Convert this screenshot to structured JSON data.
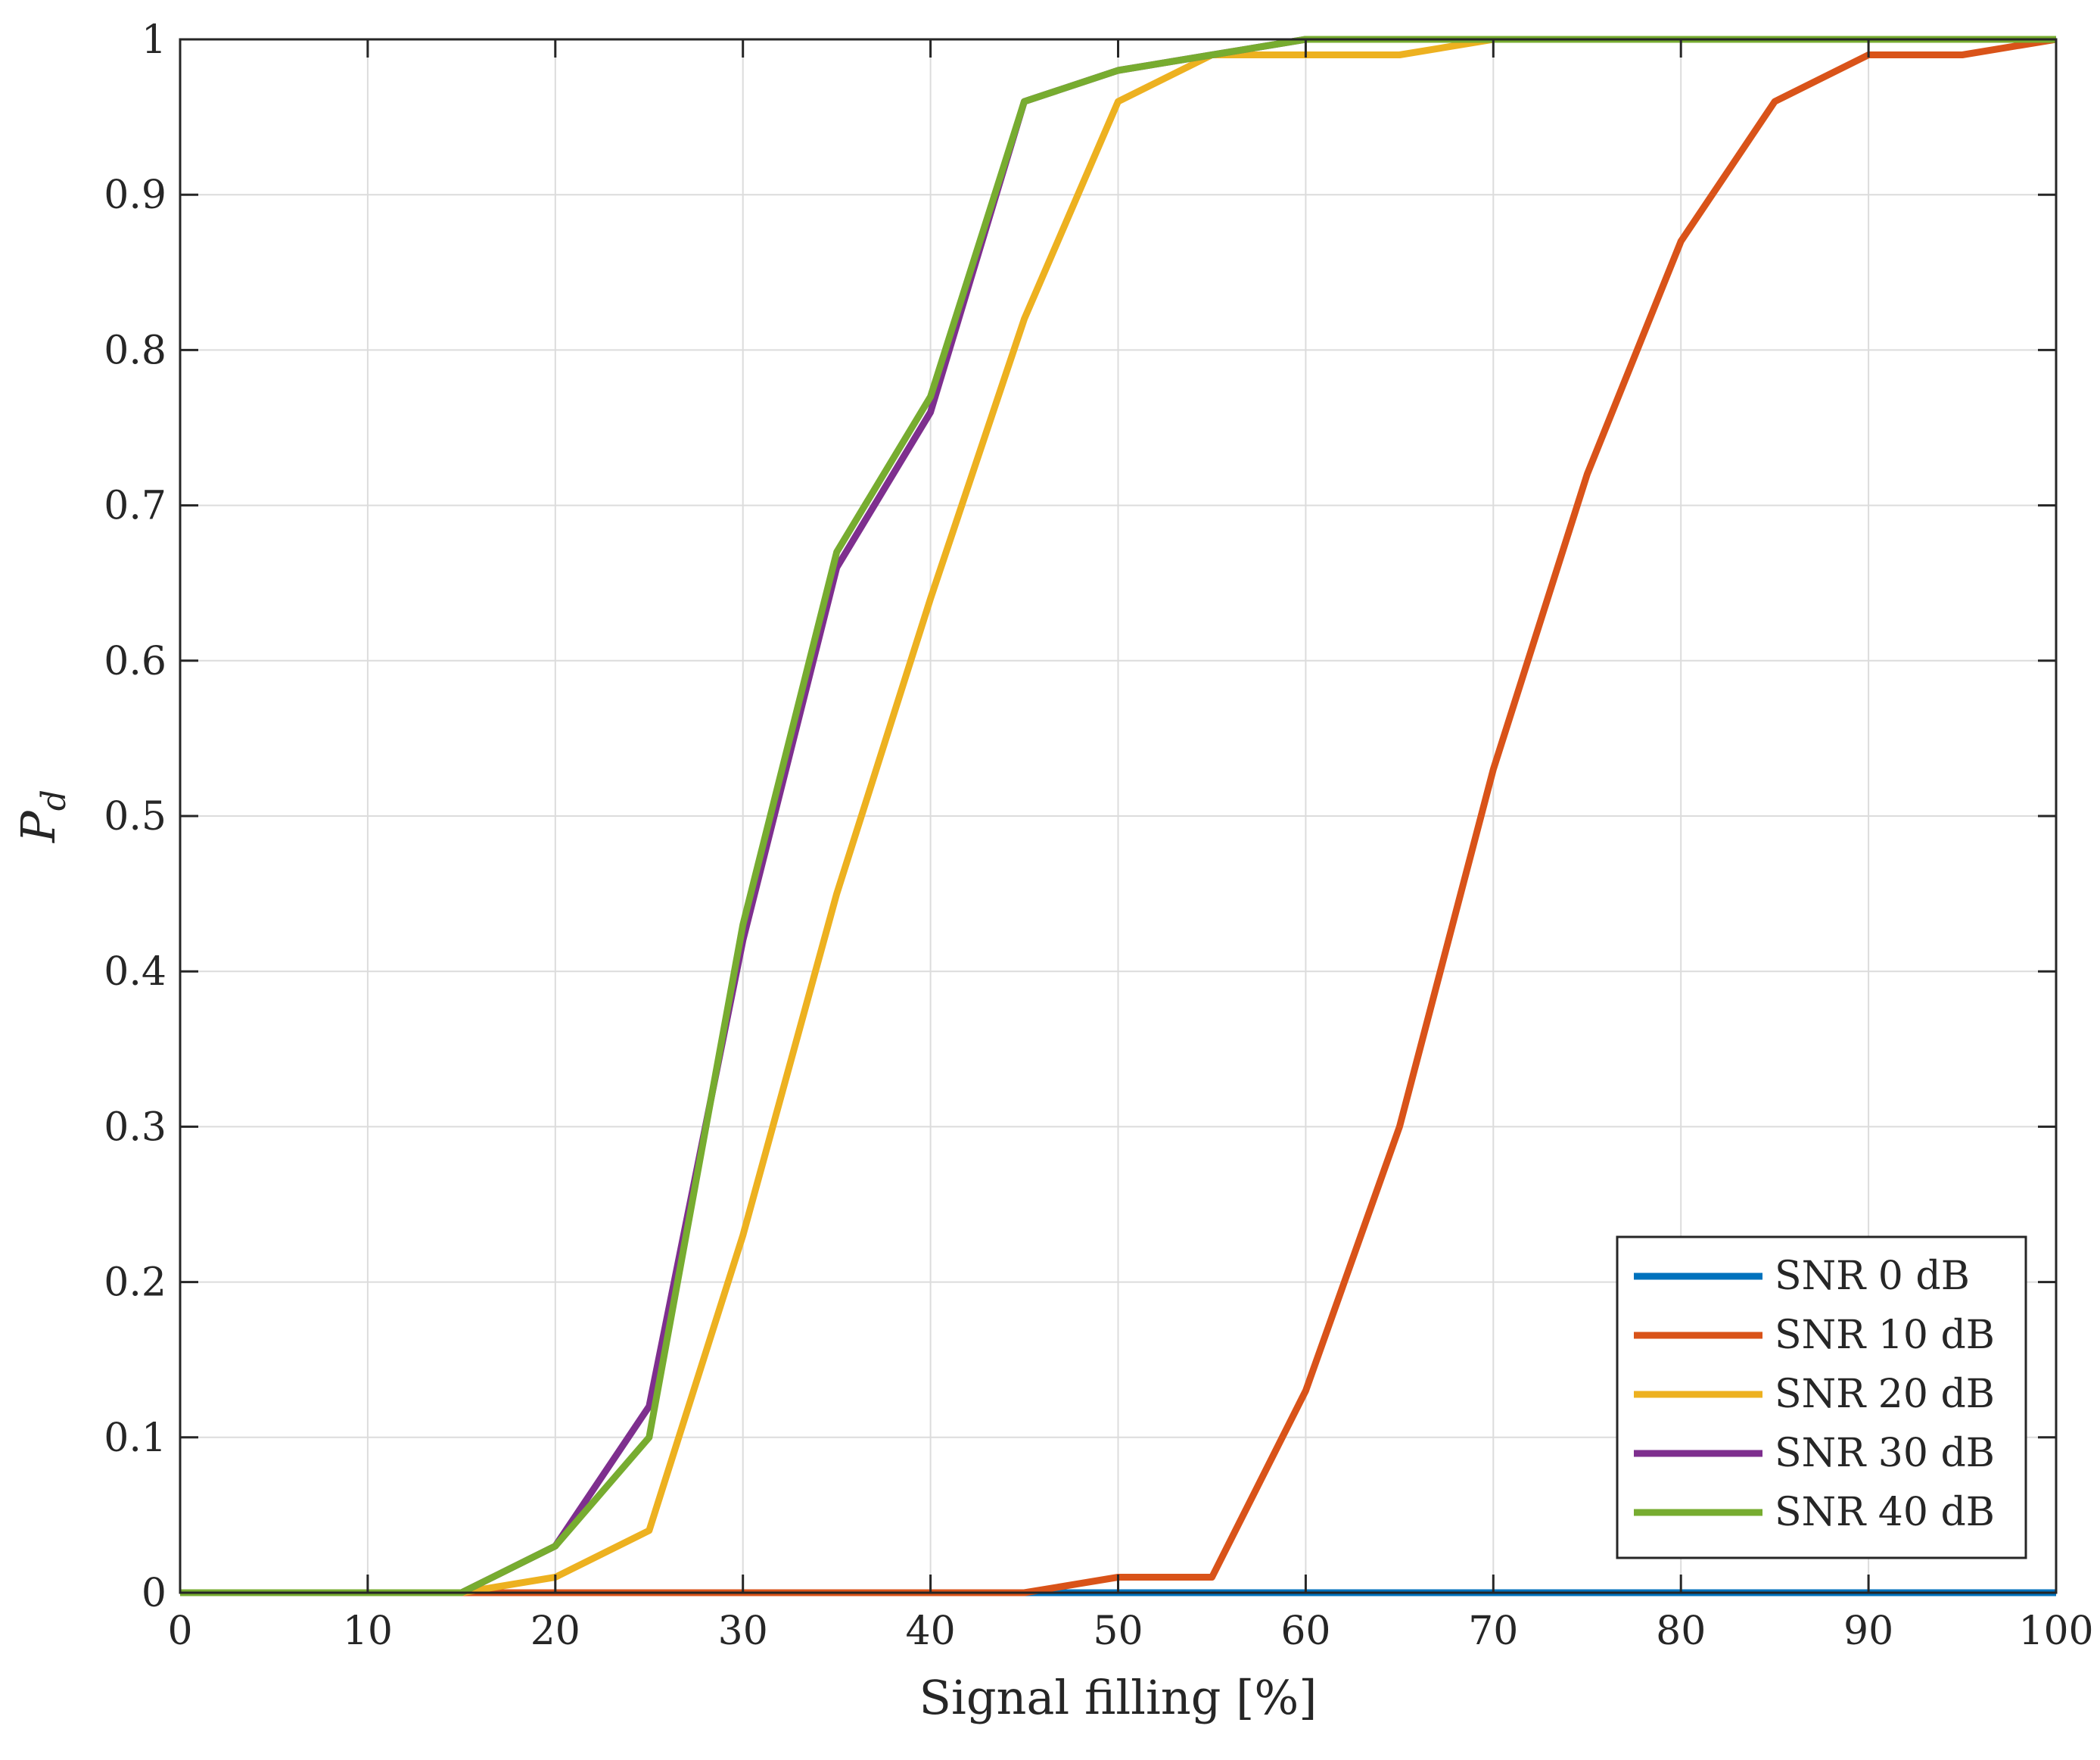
{
  "chart_data": {
    "type": "line",
    "title": "",
    "xlabel": "Signal filling [%]",
    "ylabel_main": "P",
    "ylabel_sub": "d",
    "xlim": [
      0,
      100
    ],
    "ylim": [
      0,
      1
    ],
    "xticks": [
      0,
      10,
      20,
      30,
      40,
      50,
      60,
      70,
      80,
      90,
      100
    ],
    "xtick_labels": [
      "0",
      "10",
      "20",
      "30",
      "40",
      "50",
      "60",
      "70",
      "80",
      "90",
      "100"
    ],
    "yticks": [
      0,
      0.1,
      0.2,
      0.3,
      0.4,
      0.5,
      0.6,
      0.7,
      0.8,
      0.9,
      1
    ],
    "ytick_labels": [
      "0",
      "0.1",
      "0.2",
      "0.3",
      "0.4",
      "0.5",
      "0.6",
      "0.7",
      "0.8",
      "0.9",
      "1"
    ],
    "grid": true,
    "legend_position": "bottom-right",
    "x": [
      0,
      5,
      10,
      15,
      20,
      25,
      30,
      35,
      40,
      45,
      50,
      55,
      60,
      65,
      70,
      75,
      80,
      85,
      90,
      95,
      100
    ],
    "series": [
      {
        "name": "SNR 0 dB",
        "color": "#0072BD",
        "values": [
          0,
          0,
          0,
          0,
          0,
          0,
          0,
          0,
          0,
          0,
          0,
          0,
          0,
          0,
          0,
          0,
          0,
          0,
          0,
          0,
          0
        ]
      },
      {
        "name": "SNR 10 dB",
        "color": "#D95319",
        "values": [
          0,
          0,
          0,
          0,
          0,
          0,
          0,
          0,
          0,
          0,
          0.01,
          0.01,
          0.13,
          0.3,
          0.53,
          0.72,
          0.87,
          0.96,
          0.99,
          0.99,
          1
        ]
      },
      {
        "name": "SNR 20 dB",
        "color": "#EDB120",
        "values": [
          0,
          0,
          0,
          0,
          0.01,
          0.04,
          0.23,
          0.45,
          0.64,
          0.82,
          0.96,
          0.99,
          0.99,
          0.99,
          1,
          1,
          1,
          1,
          1,
          1,
          1
        ]
      },
      {
        "name": "SNR 30 dB",
        "color": "#7E2F8E",
        "values": [
          0,
          0,
          0,
          0,
          0.03,
          0.12,
          0.42,
          0.66,
          0.76,
          0.96,
          0.98,
          0.99,
          1,
          1,
          1,
          1,
          1,
          1,
          1,
          1,
          1
        ]
      },
      {
        "name": "SNR 40 dB",
        "color": "#77AC30",
        "values": [
          0,
          0,
          0,
          0,
          0.03,
          0.1,
          0.43,
          0.67,
          0.77,
          0.96,
          0.98,
          0.99,
          1,
          1,
          1,
          1,
          1,
          1,
          1,
          1,
          1
        ]
      }
    ]
  }
}
